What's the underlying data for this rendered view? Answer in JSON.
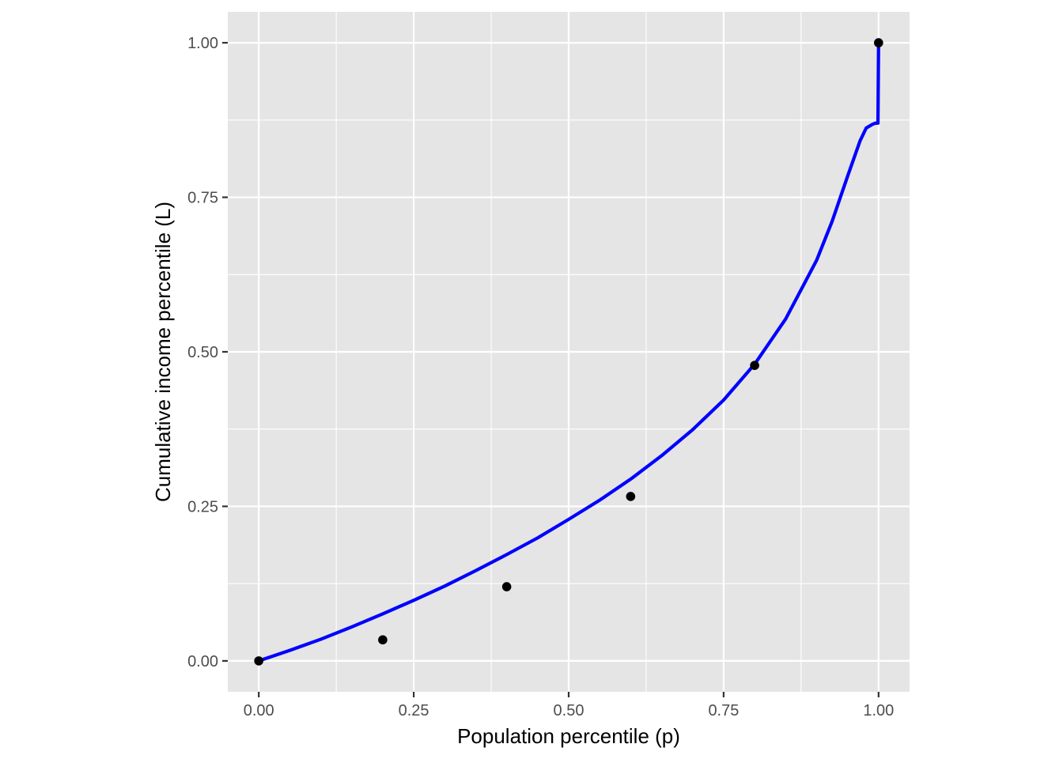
{
  "chart_data": {
    "type": "scatter",
    "title": "",
    "xlabel": "Population percentile (p)",
    "ylabel": "Cumulative income percentile (L)",
    "xlim": [
      -0.05,
      1.05
    ],
    "ylim": [
      -0.05,
      1.05
    ],
    "x_ticks": [
      0,
      0.25,
      0.5,
      0.75,
      1.0
    ],
    "x_tick_labels": [
      "0.00",
      "0.25",
      "0.50",
      "0.75",
      "1.00"
    ],
    "y_ticks": [
      0,
      0.25,
      0.5,
      0.75,
      1.0
    ],
    "y_tick_labels": [
      "0.00",
      "0.25",
      "0.50",
      "0.75",
      "1.00"
    ],
    "grid": true,
    "points": {
      "x": [
        0,
        0.2,
        0.4,
        0.6,
        0.8,
        1.0
      ],
      "y": [
        0,
        0.034,
        0.12,
        0.266,
        0.478,
        1.0
      ]
    },
    "fitted_curve": {
      "color": "#0000ff",
      "x": [
        0,
        0.05,
        0.1,
        0.15,
        0.2,
        0.25,
        0.3,
        0.35,
        0.4,
        0.45,
        0.5,
        0.55,
        0.6,
        0.65,
        0.7,
        0.75,
        0.8,
        0.85,
        0.9,
        0.925,
        0.95,
        0.97,
        0.98,
        0.99,
        0.995,
        0.999,
        1.0
      ],
      "y": [
        0,
        0.017,
        0.035,
        0.055,
        0.076,
        0.098,
        0.121,
        0.146,
        0.172,
        0.199,
        0.229,
        0.26,
        0.294,
        0.332,
        0.374,
        0.422,
        0.48,
        0.553,
        0.648,
        0.711,
        0.784,
        0.841,
        0.862,
        0.868,
        0.87,
        0.87,
        1.0
      ]
    },
    "colors": {
      "panel_background": "#e5e5e5",
      "grid": "#ffffff",
      "points": "#000000"
    }
  }
}
